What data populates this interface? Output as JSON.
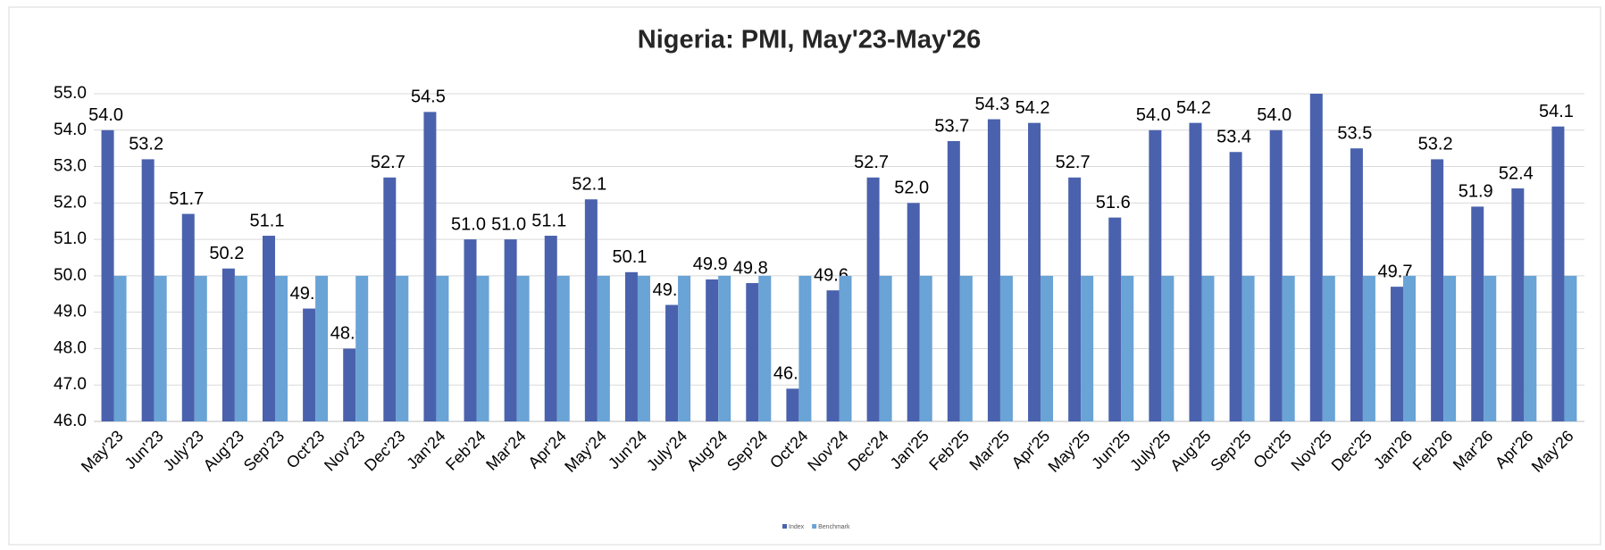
{
  "chart_data": {
    "type": "bar",
    "title": "Nigeria: PMI, May'23-May'26",
    "categories": [
      "May'23",
      "Jun'23",
      "July'23",
      "Aug'23",
      "Sep'23",
      "Oct'23",
      "Nov'23",
      "Dec'23",
      "Jan'24",
      "Feb'24",
      "Mar'24",
      "Apr'24",
      "May'24",
      "Jun'24",
      "July'24",
      "Aug'24",
      "Sep'24",
      "Oct'24",
      "Nov'24",
      "Dec'24",
      "Jan'25",
      "Feb'25",
      "Mar'25",
      "Apr'25",
      "May'25",
      "Jun'25",
      "July'25",
      "Aug'25",
      "Sep'25",
      "Oct'25",
      "Nov'25",
      "Dec'25",
      "Jan'26",
      "Feb'26",
      "Mar'26",
      "Apr'26",
      "May'26"
    ],
    "series": [
      {
        "name": "Index",
        "color": "#4a62ad",
        "values": [
          54.0,
          53.2,
          51.7,
          50.2,
          51.1,
          49.1,
          48.0,
          52.7,
          54.5,
          51.0,
          51.0,
          51.1,
          52.1,
          50.1,
          49.2,
          49.9,
          49.8,
          46.9,
          49.6,
          52.7,
          52.0,
          53.7,
          54.3,
          54.2,
          52.7,
          51.6,
          54.0,
          54.2,
          53.4,
          54.0,
          55.0,
          53.5,
          49.7,
          53.2,
          51.9,
          52.4,
          54.1
        ],
        "value_labels": [
          "54.0",
          "53.2",
          "51.7",
          "50.2",
          "51.1",
          "49.1",
          "48.0",
          "52.7",
          "54.5",
          "51.0",
          "51.0",
          "51.1",
          "52.1",
          "50.1",
          "49.2",
          "49.9",
          "49.8",
          "46.9",
          "49.6",
          "52.7",
          "52.0",
          "53.7",
          "54.3",
          "54.2",
          "52.7",
          "51.6",
          "54.0",
          "54.2",
          "53.4",
          "54.0",
          null,
          "53.5",
          "49.7",
          "53.2",
          "51.9",
          "52.4",
          "54.1"
        ]
      },
      {
        "name": "Benchmark",
        "color": "#6aa3d5",
        "values": [
          50,
          50,
          50,
          50,
          50,
          50,
          50,
          50,
          50,
          50,
          50,
          50,
          50,
          50,
          50,
          50,
          50,
          50,
          50,
          50,
          50,
          50,
          50,
          50,
          50,
          50,
          50,
          50,
          50,
          50,
          50,
          50,
          50,
          50,
          50,
          50,
          50
        ]
      }
    ],
    "ylim": [
      46,
      55
    ],
    "yticks": [
      {
        "value": 46,
        "label": "46.0"
      },
      {
        "value": 47,
        "label": "47.0"
      },
      {
        "value": 48,
        "label": "48.0"
      },
      {
        "value": 49,
        "label": "49.0"
      },
      {
        "value": 50,
        "label": "50.0"
      },
      {
        "value": 51,
        "label": "51.0"
      },
      {
        "value": 52,
        "label": "52.0"
      },
      {
        "value": 53,
        "label": "53.0"
      },
      {
        "value": 54,
        "label": "54.0"
      },
      {
        "value": 55,
        "label": "55.0"
      }
    ],
    "grid": true,
    "legend": "bottom"
  }
}
